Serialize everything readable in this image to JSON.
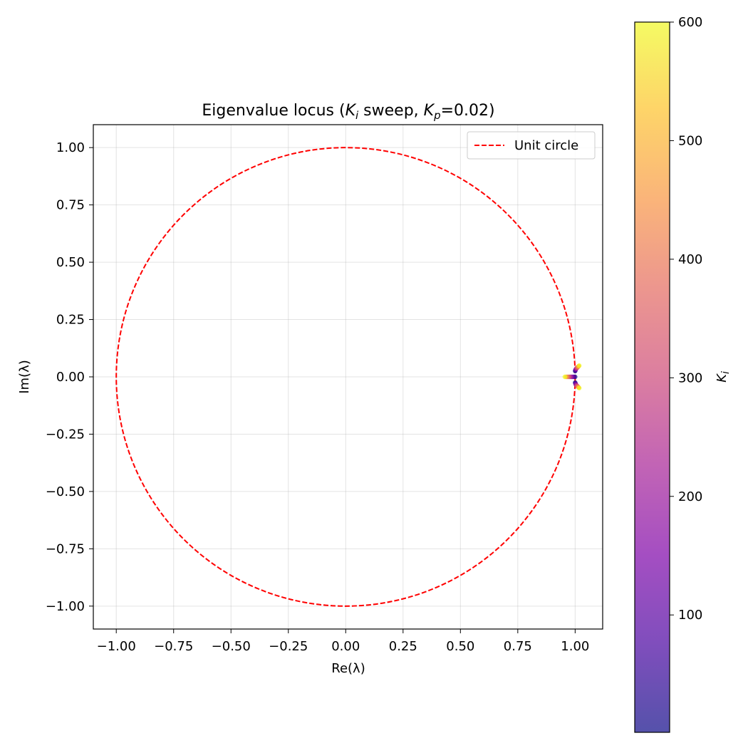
{
  "chart_data": {
    "type": "scatter",
    "title": "Eigenvalue locus (K_i sweep, K_p=0.02)",
    "title_parts": {
      "prefix": "Eigenvalue locus (",
      "var1": "K",
      "var1_sub": "i",
      "mid": " sweep, ",
      "var2": "K",
      "var2_sub": "p",
      "suffix": "=0.02)"
    },
    "xlabel": "Re(λ)",
    "ylabel": "Im(λ)",
    "xlim": [
      -1.1,
      1.12
    ],
    "ylim": [
      -1.1,
      1.1
    ],
    "xticks": [
      -1.0,
      -0.75,
      -0.5,
      -0.25,
      0.0,
      0.25,
      0.5,
      0.75,
      1.0
    ],
    "xtick_labels": [
      "−1.00",
      "−0.75",
      "−0.50",
      "−0.25",
      "0.00",
      "0.25",
      "0.50",
      "0.75",
      "1.00"
    ],
    "yticks": [
      1.0,
      0.75,
      0.5,
      0.25,
      0.0,
      -0.25,
      -0.5,
      -0.75,
      -1.0
    ],
    "ytick_labels": [
      "1.00",
      "0.75",
      "0.50",
      "0.25",
      "0.00",
      "−0.25",
      "−0.50",
      "−0.75",
      "−1.00"
    ],
    "grid": true,
    "aspect": "equal",
    "reference_curve": {
      "name": "Unit circle",
      "radius": 1.0,
      "color": "#ff0000",
      "style": "dashed"
    },
    "legend": {
      "placement": "top-right",
      "entries": [
        "Unit circle"
      ]
    },
    "colorbar": {
      "label": "K_i",
      "label_var": "K",
      "label_sub": "i",
      "range": [
        1,
        600
      ],
      "ticks": [
        100,
        200,
        300,
        400,
        500,
        600
      ],
      "tick_labels": [
        "100",
        "200",
        "300",
        "400",
        "500",
        "600"
      ],
      "colormap": "plasma",
      "alpha": 0.7
    },
    "series": [
      {
        "branch": "upper complex",
        "points": [
          [
            1.0,
            0.025
          ],
          [
            1.001,
            0.028
          ],
          [
            1.002,
            0.031
          ],
          [
            1.003,
            0.033
          ],
          [
            1.004,
            0.035
          ],
          [
            1.006,
            0.037
          ],
          [
            1.008,
            0.039
          ],
          [
            1.01,
            0.041
          ],
          [
            1.012,
            0.043
          ],
          [
            1.014,
            0.045
          ],
          [
            1.016,
            0.047
          ],
          [
            1.018,
            0.049
          ]
        ],
        "k_values": [
          5,
          50,
          100,
          150,
          200,
          250,
          300,
          350,
          400,
          450,
          520,
          600
        ]
      },
      {
        "branch": "lower complex",
        "points": [
          [
            1.0,
            -0.025
          ],
          [
            1.001,
            -0.028
          ],
          [
            1.002,
            -0.031
          ],
          [
            1.003,
            -0.033
          ],
          [
            1.004,
            -0.035
          ],
          [
            1.006,
            -0.037
          ],
          [
            1.008,
            -0.039
          ],
          [
            1.01,
            -0.041
          ],
          [
            1.012,
            -0.043
          ],
          [
            1.014,
            -0.045
          ],
          [
            1.016,
            -0.047
          ],
          [
            1.018,
            -0.049
          ]
        ],
        "k_values": [
          5,
          50,
          100,
          150,
          200,
          250,
          300,
          350,
          400,
          450,
          520,
          600
        ]
      },
      {
        "branch": "real",
        "points": [
          [
            1.0,
            0.0
          ],
          [
            0.995,
            0.0
          ],
          [
            0.99,
            0.0
          ],
          [
            0.985,
            0.0
          ],
          [
            0.98,
            0.0
          ],
          [
            0.975,
            0.0
          ],
          [
            0.97,
            0.0
          ],
          [
            0.965,
            0.0
          ],
          [
            0.96,
            0.0
          ],
          [
            0.955,
            0.0
          ]
        ],
        "k_values": [
          5,
          60,
          120,
          180,
          240,
          300,
          360,
          420,
          500,
          600
        ]
      }
    ]
  }
}
